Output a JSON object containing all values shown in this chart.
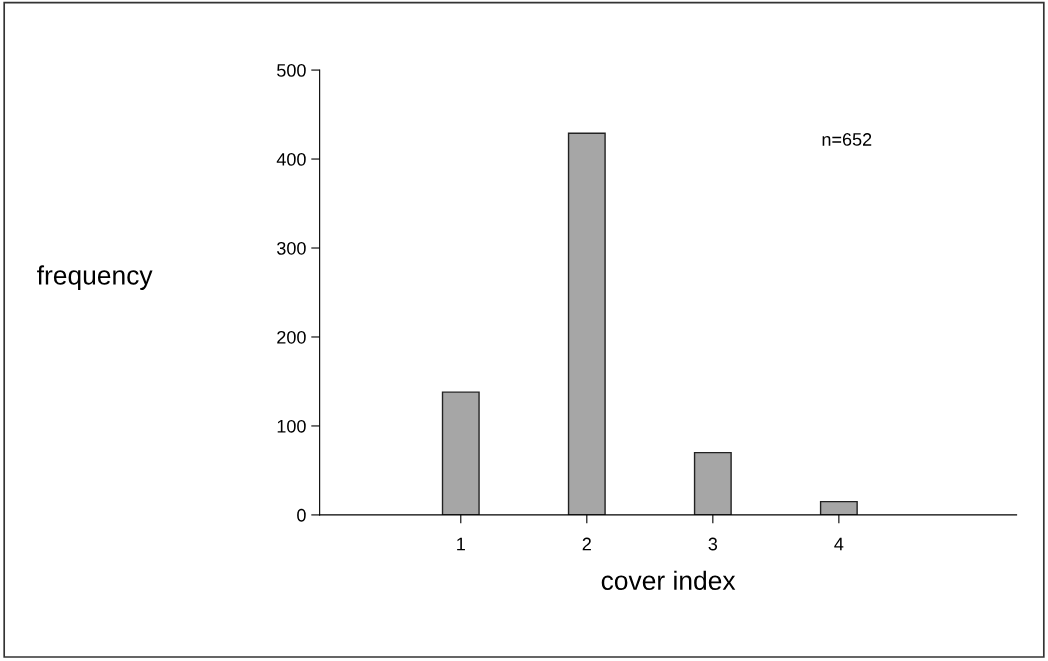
{
  "chart_data": {
    "type": "bar",
    "xlabel": "cover index",
    "ylabel": "frequency",
    "x": [
      1,
      2,
      3,
      4
    ],
    "values": [
      138,
      429,
      70,
      15
    ],
    "color": "#a6a6a6",
    "xlim": [
      -0.12,
      5.41
    ],
    "xticks": [
      1,
      2,
      3,
      4
    ],
    "ylim": [
      0,
      500
    ],
    "yticks": [
      0,
      100,
      200,
      300,
      400,
      500
    ],
    "annotations": [
      "n=652"
    ],
    "grid": false,
    "legend": false
  }
}
